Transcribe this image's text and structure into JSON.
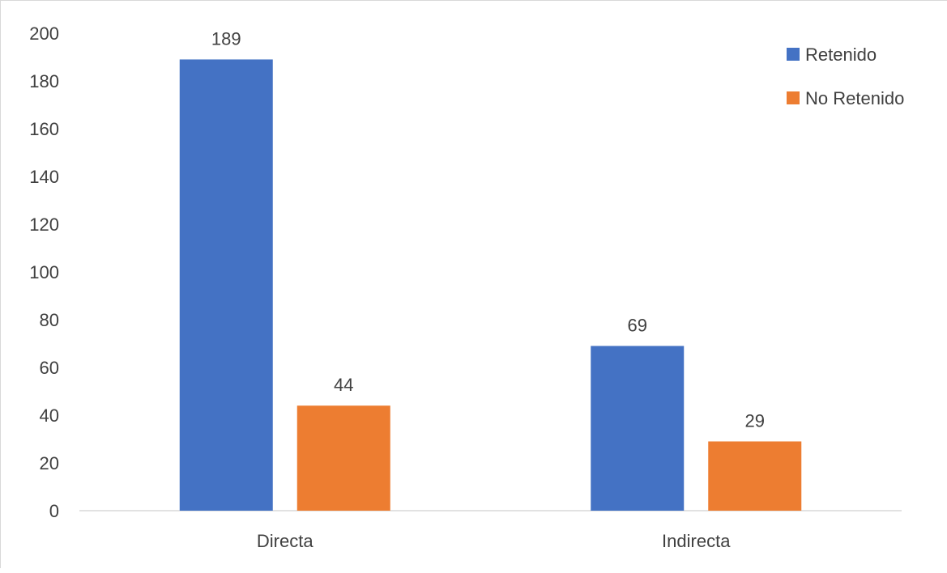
{
  "chart_data": {
    "type": "bar",
    "categories": [
      "Directa",
      "Indirecta"
    ],
    "series": [
      {
        "name": "Retenido",
        "values": [
          189,
          69
        ],
        "color": "#4472c4"
      },
      {
        "name": "No Retenido",
        "values": [
          44,
          29
        ],
        "color": "#ed7d31"
      }
    ],
    "ylim": [
      0,
      200
    ],
    "yticks": [
      0,
      20,
      40,
      60,
      80,
      100,
      120,
      140,
      160,
      180,
      200
    ],
    "data_labels": true,
    "grid": false,
    "legend_position": "top-right",
    "title": "",
    "xlabel": "",
    "ylabel": ""
  }
}
